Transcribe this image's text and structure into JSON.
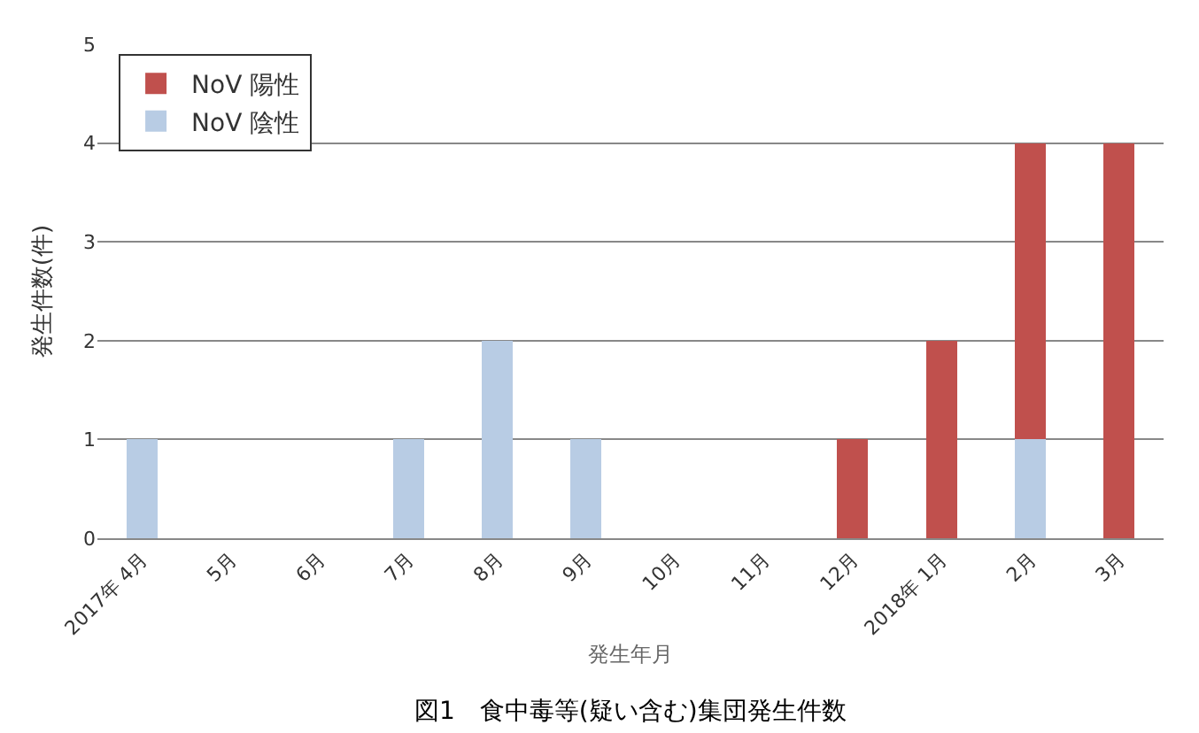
{
  "chart_data": {
    "type": "bar",
    "title": "図1　食中毒等(疑い含む)集団発生件数",
    "xlabel": "発生年月",
    "ylabel": "発生件数(件)",
    "categories": [
      "2017年 4月",
      "5月",
      "6月",
      "7月",
      "8月",
      "9月",
      "10月",
      "11月",
      "12月",
      "2018年 1月",
      "2月",
      "3月"
    ],
    "stacked": true,
    "series": [
      {
        "name": "NoV 陰性",
        "color": "#b8cce4",
        "values": [
          1,
          0,
          0,
          1,
          2,
          1,
          0,
          0,
          0,
          0,
          1,
          0
        ]
      },
      {
        "name": "NoV 陽性",
        "color": "#c0504d",
        "values": [
          0,
          0,
          0,
          0,
          0,
          0,
          0,
          0,
          1,
          2,
          3,
          4
        ]
      }
    ],
    "ylim": [
      0,
      5
    ],
    "yticks": [
      0,
      1,
      2,
      3,
      4,
      5
    ],
    "grid": "y",
    "legend": "top left"
  }
}
